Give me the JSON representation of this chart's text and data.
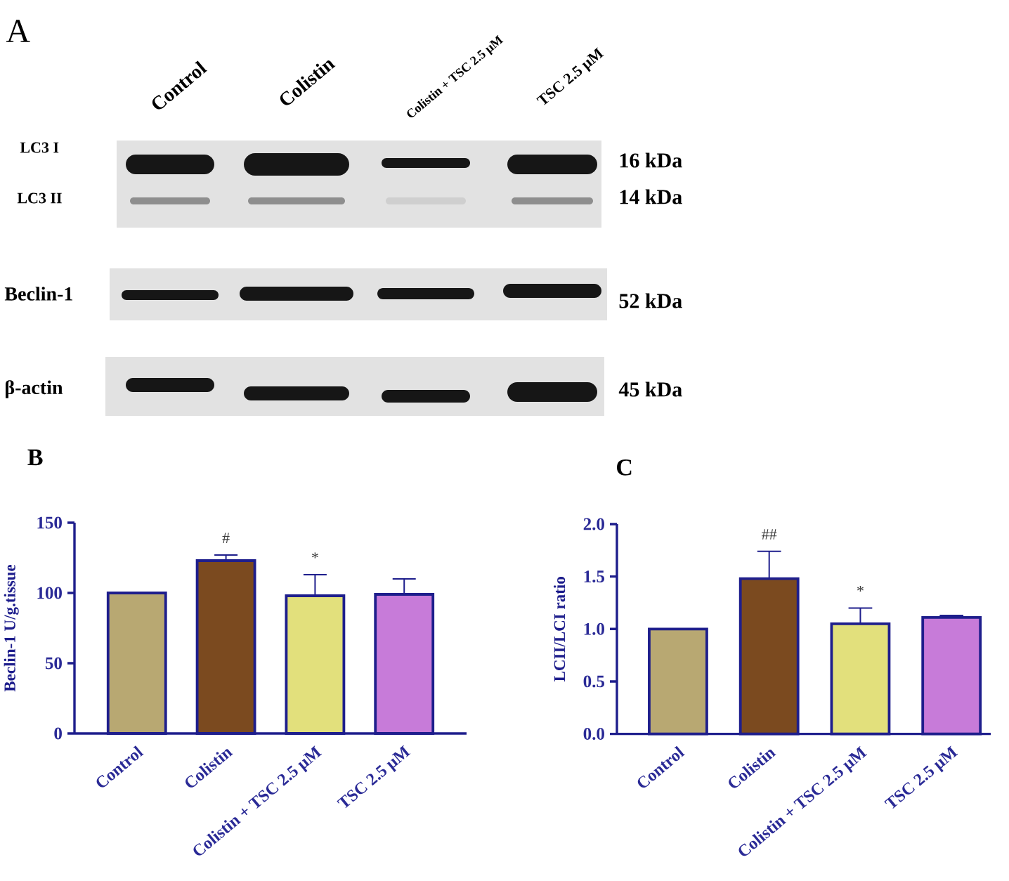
{
  "chart_data": [
    {
      "type": "other",
      "title": "A",
      "categories": [
        "Control",
        "Colistin",
        "Colistin + TSC 2.5 μM",
        "TSC 2.5 μM"
      ],
      "annotations": [
        "LC3 I",
        "LC3 II",
        "Beclin-1",
        "β-actin",
        "16 kDa",
        "14 kDa",
        "52 kDa",
        "45 kDa"
      ]
    },
    {
      "type": "bar",
      "title": "B",
      "ylabel": "Beclin-1 U/g.tissue",
      "categories": [
        "Control",
        "Colistin",
        "Colistin + TSC 2.5 μM",
        "TSC 2.5 μM"
      ],
      "values": [
        100,
        123,
        98,
        99
      ],
      "errors": [
        null,
        [
          123,
          127
        ],
        [
          98,
          113
        ],
        [
          99,
          110
        ]
      ],
      "colors": [
        "#b8a872",
        "#7b4a1f",
        "#e2e07c",
        "#c77bd9"
      ],
      "ylim": [
        0,
        150
      ],
      "yticks": [
        0,
        50,
        100,
        150
      ],
      "annotations": [
        {
          "text": "#",
          "x": "Colistin",
          "y": 123
        },
        {
          "text": "*",
          "x": "Colistin + TSC 2.5 μM",
          "y": 98
        }
      ]
    },
    {
      "type": "bar",
      "title": "C",
      "ylabel": "LCII/LCI ratio",
      "categories": [
        "Control",
        "Colistin",
        "Colistin + TSC 2.5 μM",
        "TSC 2.5 μM"
      ],
      "values": [
        1.0,
        1.48,
        1.05,
        1.11
      ],
      "errors": [
        null,
        [
          1.48,
          1.74
        ],
        [
          1.05,
          1.2
        ],
        [
          1.11,
          1.13
        ]
      ],
      "colors": [
        "#b8a872",
        "#7b4a1f",
        "#e2e07c",
        "#c77bd9"
      ],
      "ylim": [
        0,
        2
      ],
      "yticks": [
        {
          "value": 0,
          "label": "0.0"
        },
        0.5,
        {
          "value": 1,
          "label": "1.0"
        },
        1.5,
        {
          "value": 2,
          "label": "2.0"
        }
      ],
      "annotations": [
        {
          "text": "##",
          "x": "Colistin",
          "y": 1.48
        },
        {
          "text": "*",
          "x": "Colistin + TSC 2.5 μM",
          "y": 1.05
        }
      ]
    }
  ]
}
